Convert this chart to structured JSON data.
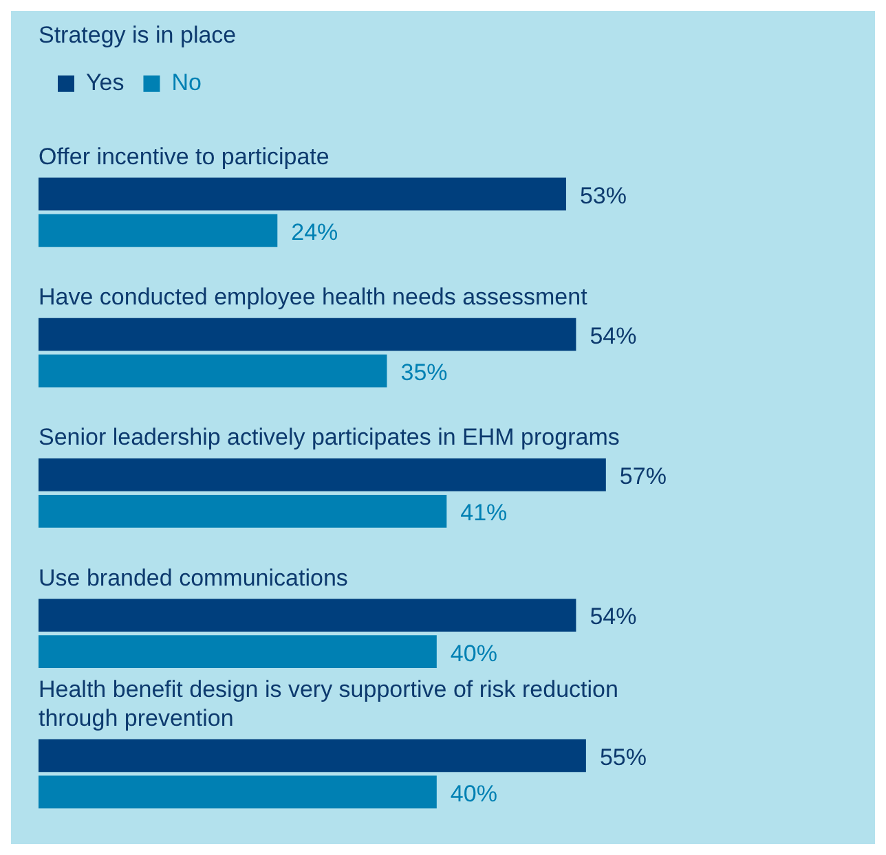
{
  "chart_data": {
    "type": "bar",
    "orientation": "horizontal",
    "legend_title": "Strategy is in place",
    "legend": "top left",
    "categories": [
      "Offer incentive to participate",
      "Have conducted employee health needs assessment",
      "Senior leadership actively participates in EHM programs",
      "Use branded communications",
      "Health benefit design is very supportive of risk reduction through prevention"
    ],
    "series": [
      {
        "name": "Yes",
        "color": "#003f7d",
        "values": [
          53,
          54,
          57,
          54,
          55
        ],
        "value_labels": [
          "53%",
          "54%",
          "57%",
          "54%",
          "55%"
        ]
      },
      {
        "name": "No",
        "color": "#0080b3",
        "values": [
          24,
          35,
          41,
          40,
          40
        ],
        "value_labels": [
          "24%",
          "35%",
          "41%",
          "40%",
          "40%"
        ]
      }
    ]
  }
}
